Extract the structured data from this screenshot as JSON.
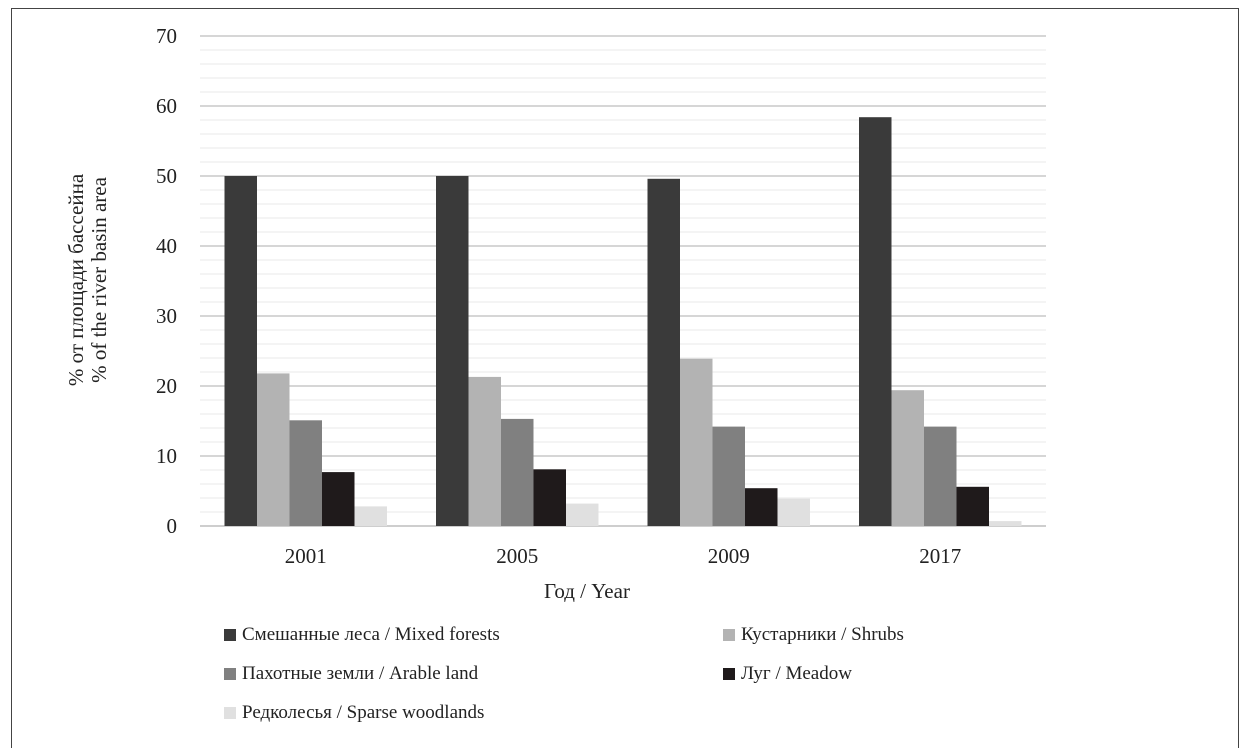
{
  "chart_data": {
    "type": "bar",
    "xlabel": "Год / Year",
    "ylabel_lines": [
      "% от площади бассейна",
      "% of the river basin area"
    ],
    "categories": [
      "2001",
      "2005",
      "2009",
      "2017"
    ],
    "ylim": [
      0,
      70
    ],
    "yticks": [
      0,
      10,
      20,
      30,
      40,
      50,
      60,
      70
    ],
    "grid": true,
    "legend_position": "bottom",
    "series": [
      {
        "name": "Смешанные леса / Mixed forests",
        "color": "#3a3a3a",
        "values": [
          50.0,
          50.0,
          49.6,
          58.4
        ]
      },
      {
        "name": "Кустарники / Shrubs",
        "color": "#b3b3b3",
        "values": [
          21.8,
          21.3,
          23.9,
          19.4
        ]
      },
      {
        "name": "Пахотные земли / Arable land",
        "color": "#808080",
        "values": [
          15.1,
          15.3,
          14.2,
          14.2
        ]
      },
      {
        "name": "Луг / Meadow",
        "color": "#1f1a1b",
        "values": [
          7.7,
          8.1,
          5.4,
          5.6
        ]
      },
      {
        "name": "Редколесья / Sparse woodlands",
        "color": "#e0e0e0",
        "values": [
          2.8,
          3.2,
          3.9,
          0.7
        ]
      }
    ]
  }
}
